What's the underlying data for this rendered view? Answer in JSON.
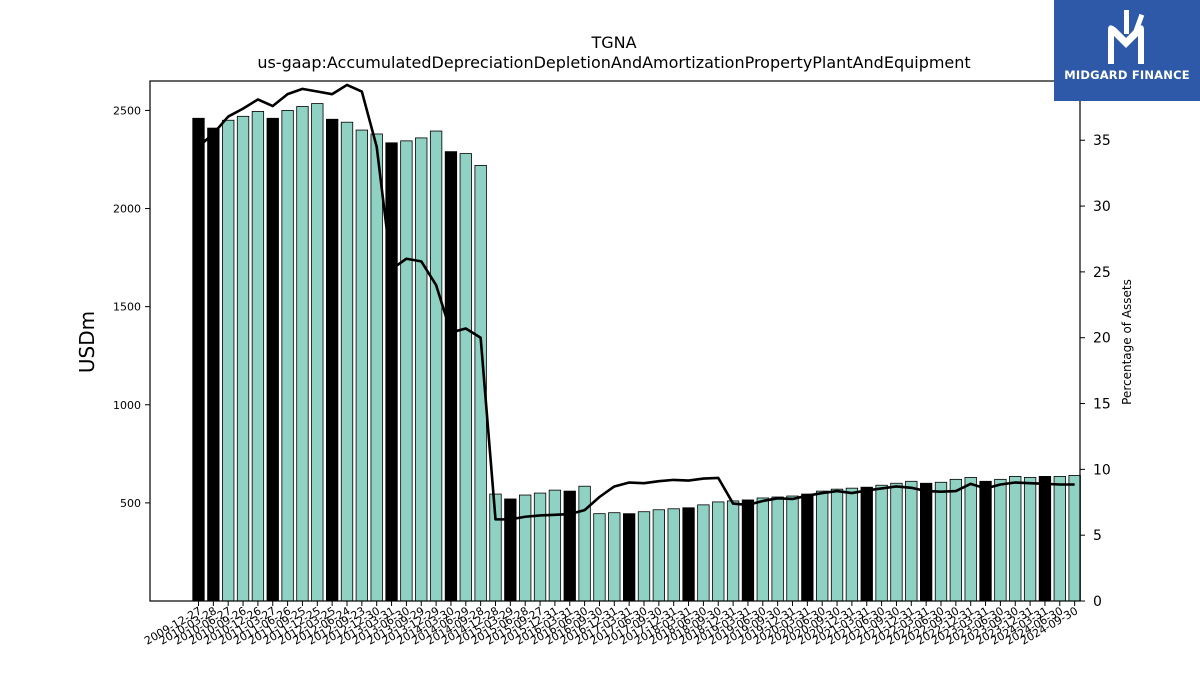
{
  "chart_data": {
    "type": "bar",
    "title": "TGNA",
    "subtitle": "us-gaap:AccumulatedDepreciationDepletionAndAmortizationPropertyPlantAndEquipment",
    "xlabel": "",
    "ylabel": "USDm",
    "y2label": "Percentage of Assets",
    "ylim": [
      0,
      2650
    ],
    "y2lim": [
      0,
      39.5
    ],
    "yticks": [
      500,
      1000,
      1500,
      2000,
      2500
    ],
    "y2ticks": [
      0,
      5,
      10,
      15,
      20,
      25,
      30,
      35
    ],
    "grid": false,
    "colors": {
      "bar": "#8fd1c2",
      "bar_annual": "#000000",
      "line": "#000000"
    },
    "categories": [
      "2009-12-27",
      "2010-03-28",
      "2010-06-27",
      "2010-09-26",
      "2010-12-26",
      "2011-03-27",
      "2011-06-26",
      "2011-09-25",
      "2011-12-25",
      "2012-03-25",
      "2012-06-24",
      "2012-09-23",
      "2012-12-30",
      "2013-03-31",
      "2013-06-30",
      "2013-09-29",
      "2013-12-29",
      "2014-03-30",
      "2014-06-29",
      "2014-09-28",
      "2014-12-28",
      "2015-03-29",
      "2015-06-28",
      "2015-09-27",
      "2015-12-31",
      "2016-03-31",
      "2016-06-30",
      "2016-09-30",
      "2016-12-31",
      "2017-03-31",
      "2017-06-30",
      "2017-09-30",
      "2017-12-31",
      "2018-03-31",
      "2018-06-30",
      "2018-09-30",
      "2018-12-31",
      "2019-03-31",
      "2019-06-30",
      "2019-09-30",
      "2019-12-31",
      "2020-03-31",
      "2020-06-30",
      "2020-09-30",
      "2020-12-31",
      "2021-03-31",
      "2021-06-30",
      "2021-09-30",
      "2021-12-31",
      "2022-03-31",
      "2022-06-30",
      "2022-09-30",
      "2022-12-31",
      "2023-03-31",
      "2023-06-30",
      "2023-09-30",
      "2023-12-31",
      "2024-03-31",
      "2024-06-30",
      "2024-09-30"
    ],
    "series": [
      {
        "values": [
          2460,
          2410,
          2450,
          2470,
          2495,
          2460,
          2500,
          2520,
          2535,
          2455,
          2440,
          2400,
          2380,
          2335,
          2345,
          2360,
          2395,
          2290,
          2280,
          2220,
          545,
          520,
          540,
          550,
          565,
          560,
          585,
          445,
          450,
          445,
          455,
          465,
          470,
          475,
          490,
          505,
          510,
          515,
          525,
          530,
          535,
          545,
          560,
          570,
          575,
          580,
          590,
          600,
          610,
          600,
          605,
          620,
          630,
          610,
          620,
          635,
          630,
          635,
          635,
          640
        ],
        "annual": [
          true,
          true,
          false,
          false,
          false,
          true,
          false,
          false,
          false,
          true,
          false,
          false,
          false,
          true,
          false,
          false,
          false,
          true,
          false,
          false,
          false,
          true,
          false,
          false,
          false,
          true,
          false,
          false,
          false,
          true,
          false,
          false,
          false,
          true,
          false,
          false,
          false,
          true,
          false,
          false,
          false,
          true,
          false,
          false,
          false,
          true,
          false,
          false,
          false,
          true,
          false,
          false,
          false,
          true,
          false,
          false,
          false,
          true,
          false,
          false
        ]
      },
      {
        "axis": "right",
        "values": [
          34.5,
          35.5,
          36.8,
          37.4,
          38.1,
          37.6,
          38.5,
          38.9,
          38.7,
          38.5,
          39.2,
          38.7,
          34.5,
          25.2,
          26.0,
          25.8,
          24.0,
          20.4,
          20.7,
          20.0,
          6.2,
          6.2,
          6.4,
          6.5,
          6.55,
          6.6,
          6.9,
          7.9,
          8.7,
          9.0,
          8.95,
          9.1,
          9.2,
          9.15,
          9.3,
          9.35,
          7.4,
          7.3,
          7.6,
          7.8,
          7.75,
          8.0,
          8.2,
          8.35,
          8.2,
          8.4,
          8.55,
          8.7,
          8.6,
          8.35,
          8.3,
          8.35,
          8.9,
          8.55,
          8.85,
          9.0,
          8.95,
          8.9,
          8.85,
          8.85
        ]
      }
    ]
  },
  "logo": {
    "text": "MIDGARD FINANCE"
  }
}
